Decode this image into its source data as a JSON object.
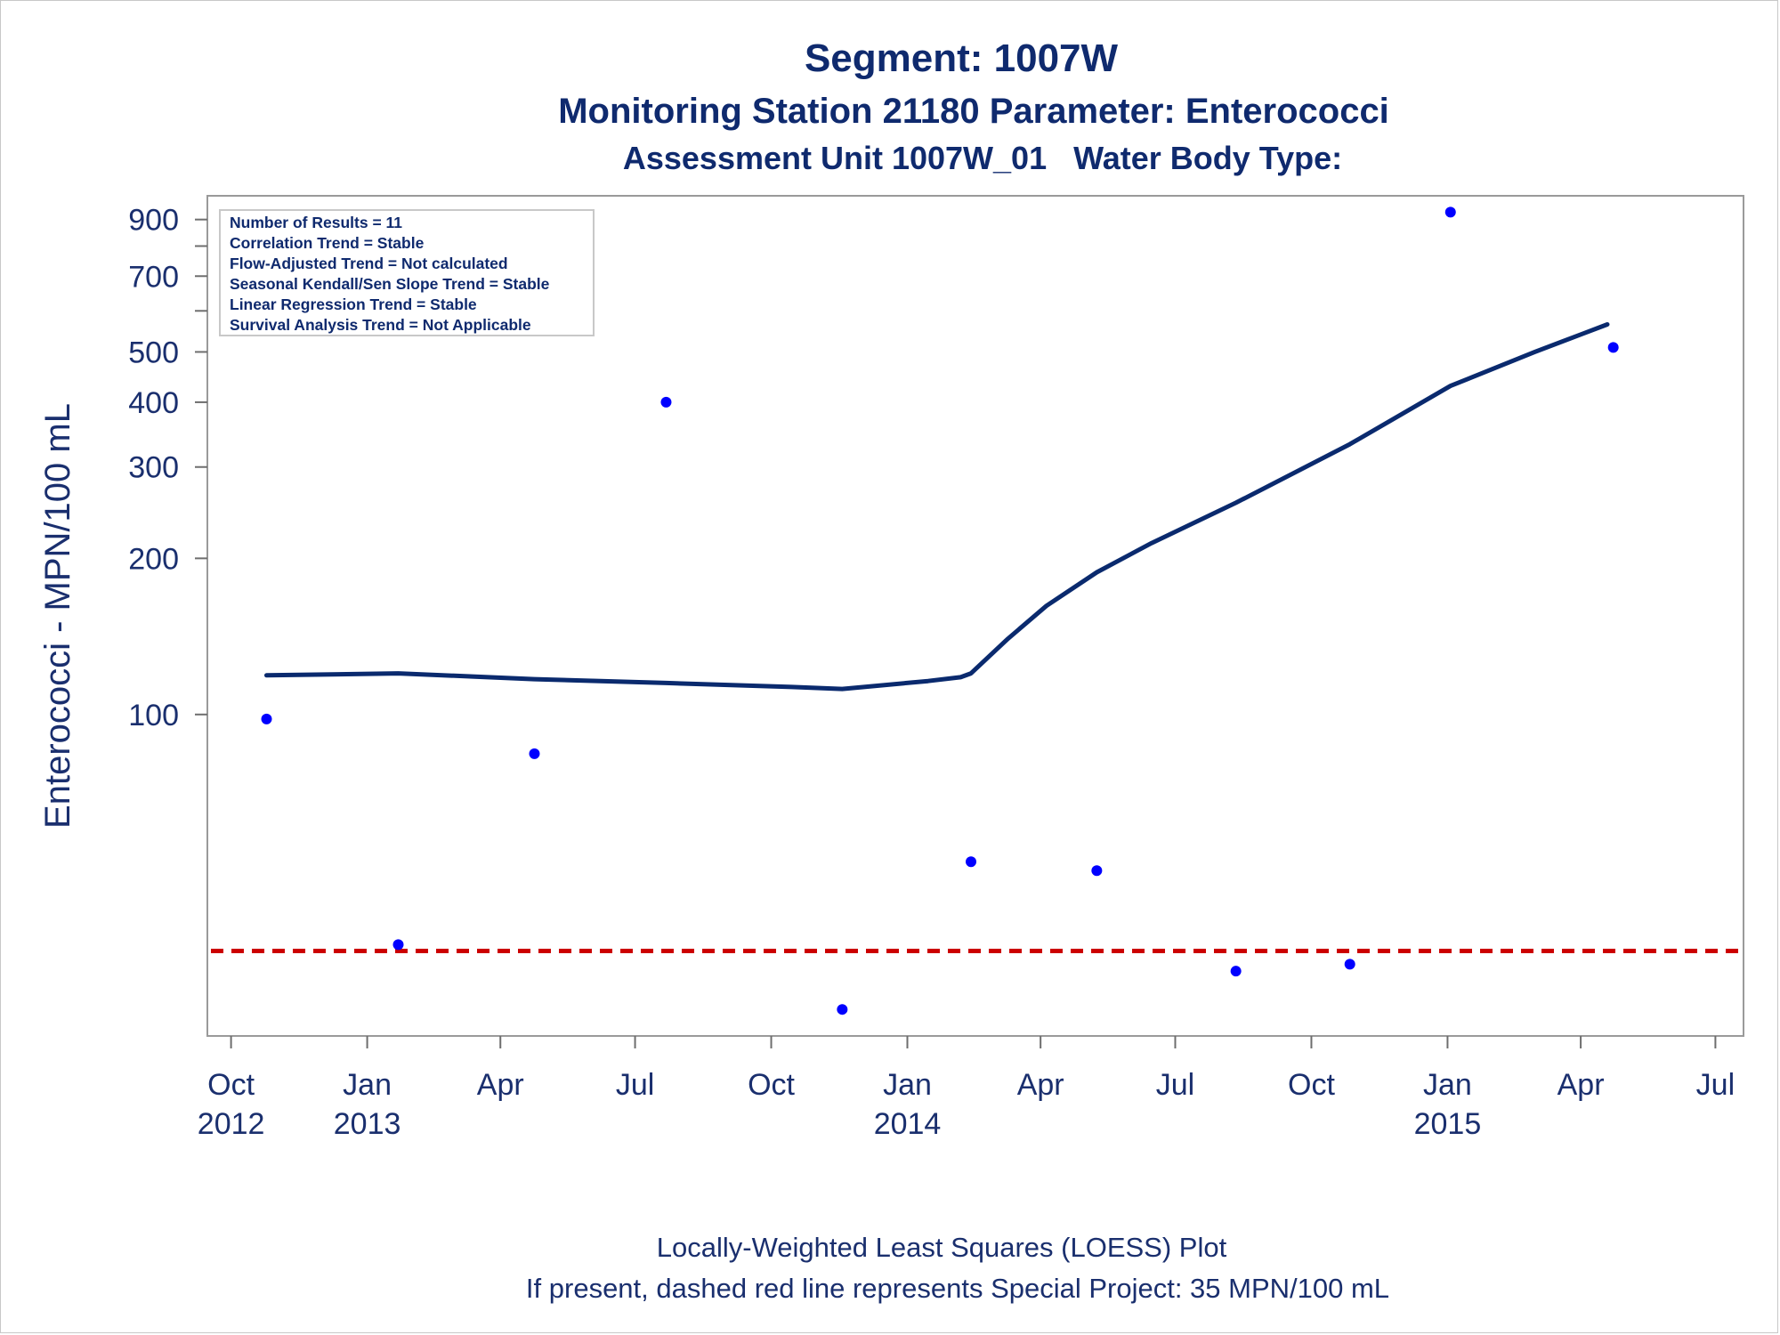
{
  "chart_data": {
    "type": "scatter",
    "title": "Segment: 1007W",
    "subtitle": "Monitoring Station 21180 Parameter: Enterococci",
    "subtitle2": "Assessment Unit 1007W_01   Water Body Type:",
    "ylabel": "Enterococci - MPN/100 mL",
    "yscale": "log",
    "ylim": [
      24,
      1000
    ],
    "xlim": [
      "2012-09-15",
      "2015-07-20"
    ],
    "yticks": [
      {
        "value": 100,
        "label": "100"
      },
      {
        "value": 200,
        "label": "200"
      },
      {
        "value": 300,
        "label": "300"
      },
      {
        "value": 400,
        "label": "400"
      },
      {
        "value": 500,
        "label": "500"
      },
      {
        "value": 600,
        "label": ""
      },
      {
        "value": 700,
        "label": "700"
      },
      {
        "value": 800,
        "label": ""
      },
      {
        "value": 900,
        "label": "900"
      }
    ],
    "xticks": [
      {
        "date": "2012-10-01",
        "line1": "Oct",
        "line2": "2012"
      },
      {
        "date": "2013-01-01",
        "line1": "Jan",
        "line2": "2013"
      },
      {
        "date": "2013-04-01",
        "line1": "Apr",
        "line2": ""
      },
      {
        "date": "2013-07-01",
        "line1": "Jul",
        "line2": ""
      },
      {
        "date": "2013-10-01",
        "line1": "Oct",
        "line2": ""
      },
      {
        "date": "2014-01-01",
        "line1": "Jan",
        "line2": "2014"
      },
      {
        "date": "2014-04-01",
        "line1": "Apr",
        "line2": ""
      },
      {
        "date": "2014-07-01",
        "line1": "Jul",
        "line2": ""
      },
      {
        "date": "2014-10-01",
        "line1": "Oct",
        "line2": ""
      },
      {
        "date": "2015-01-01",
        "line1": "Jan",
        "line2": "2015"
      },
      {
        "date": "2015-04-01",
        "line1": "Apr",
        "line2": ""
      },
      {
        "date": "2015-07-01",
        "line1": "Jul",
        "line2": ""
      }
    ],
    "points": [
      {
        "date": "2012-10-25",
        "value": 98
      },
      {
        "date": "2013-01-22",
        "value": 36
      },
      {
        "date": "2013-04-24",
        "value": 84
      },
      {
        "date": "2013-07-22",
        "value": 400
      },
      {
        "date": "2013-11-18",
        "value": 27
      },
      {
        "date": "2014-02-13",
        "value": 52
      },
      {
        "date": "2014-05-09",
        "value": 50
      },
      {
        "date": "2014-08-11",
        "value": 32
      },
      {
        "date": "2014-10-27",
        "value": 33
      },
      {
        "date": "2015-01-03",
        "value": 930
      },
      {
        "date": "2015-04-23",
        "value": 510
      }
    ],
    "loess": [
      {
        "date": "2012-10-25",
        "value": 119
      },
      {
        "date": "2013-01-22",
        "value": 120
      },
      {
        "date": "2013-04-24",
        "value": 117
      },
      {
        "date": "2013-07-22",
        "value": 115
      },
      {
        "date": "2013-10-15",
        "value": 113
      },
      {
        "date": "2013-11-18",
        "value": 112
      },
      {
        "date": "2014-01-15",
        "value": 116
      },
      {
        "date": "2014-02-06",
        "value": 118
      },
      {
        "date": "2014-02-13",
        "value": 120
      },
      {
        "date": "2014-03-10",
        "value": 140
      },
      {
        "date": "2014-04-05",
        "value": 162
      },
      {
        "date": "2014-05-09",
        "value": 188
      },
      {
        "date": "2014-06-15",
        "value": 214
      },
      {
        "date": "2014-08-11",
        "value": 256
      },
      {
        "date": "2014-10-27",
        "value": 332
      },
      {
        "date": "2015-01-03",
        "value": 430
      },
      {
        "date": "2015-03-01",
        "value": 500
      },
      {
        "date": "2015-04-19",
        "value": 565
      }
    ],
    "reference_line": {
      "value": 35
    },
    "info_box": [
      "Number of Results = 11",
      "Correlation Trend = Stable",
      "Flow-Adjusted Trend = Not calculated",
      "Seasonal Kendall/Sen Slope Trend = Stable",
      "Linear Regression Trend = Stable",
      "Survival Analysis Trend = Not Applicable"
    ],
    "footnotes": [
      "Locally-Weighted Least Squares (LOESS) Plot",
      "If present, dashed red line represents Special Project: 35 MPN/100 mL"
    ],
    "colors": {
      "points": "#0000ff",
      "loess": "#0a2a6e",
      "reference": "#cc0000",
      "text": "#0f2a6e",
      "axis": "#9a9a9a"
    }
  }
}
